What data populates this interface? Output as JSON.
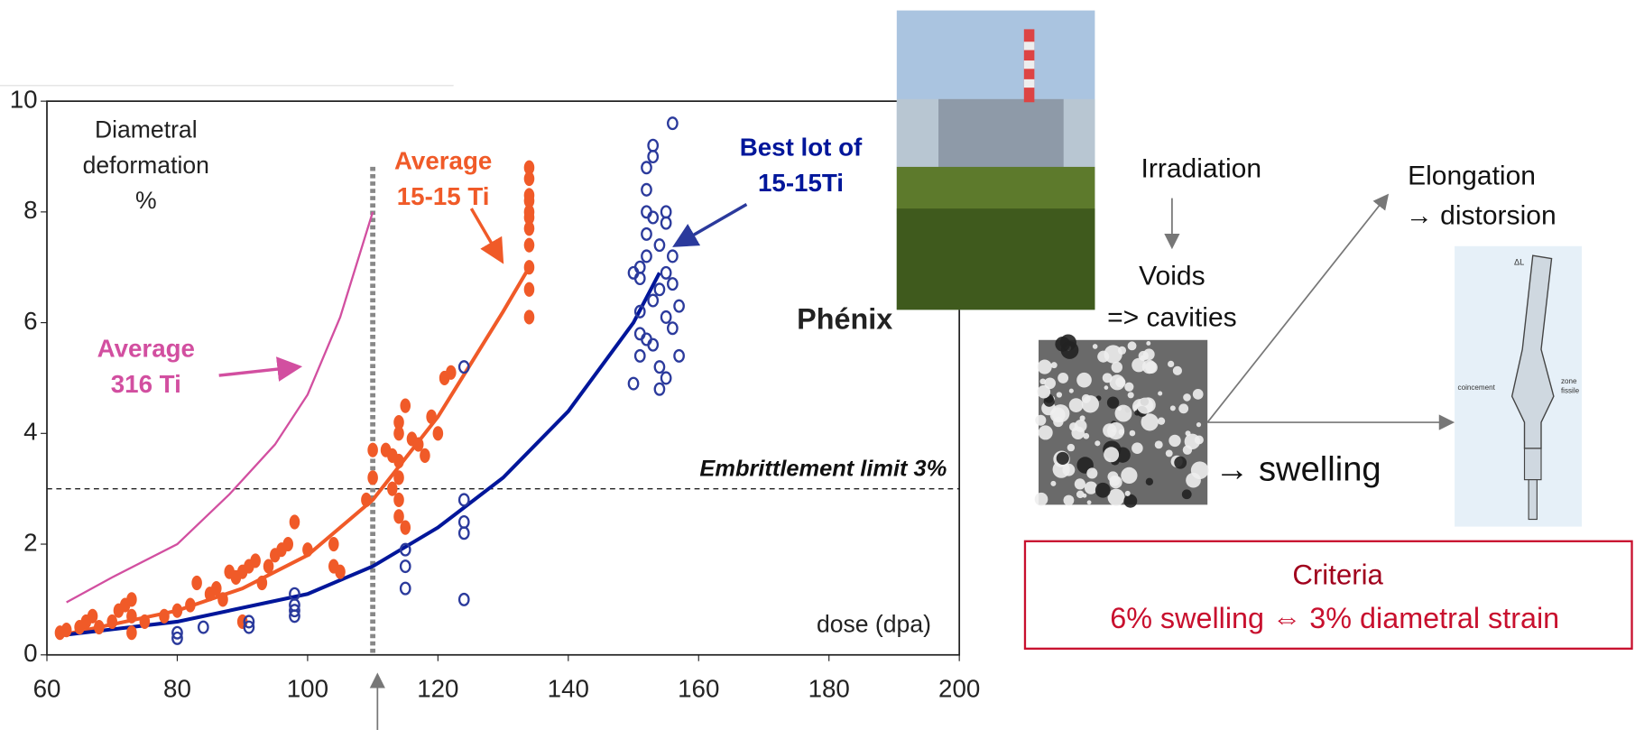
{
  "chart_data": {
    "type": "scatter",
    "ylabel_lines": [
      "Diametral",
      "deformation",
      "%"
    ],
    "xlabel": "dose (dpa)",
    "xlim": [
      60,
      200
    ],
    "xticks": [
      60,
      80,
      100,
      120,
      140,
      160,
      180,
      200
    ],
    "ylim": [
      0,
      10
    ],
    "yticks": [
      0,
      2,
      4,
      6,
      8,
      10
    ],
    "series": [
      {
        "label_lines": [
          "Average",
          "316 Ti"
        ],
        "style": "line",
        "color": "#d24fa0",
        "x": [
          63,
          70,
          80,
          88,
          95,
          100,
          105,
          110
        ],
        "values": [
          0.95,
          1.4,
          2.0,
          2.9,
          3.8,
          4.7,
          6.1,
          8.0
        ]
      },
      {
        "label_lines": [
          "Average",
          "15-15 Ti"
        ],
        "style": "line",
        "color": "#f05a28",
        "x": [
          62,
          70,
          80,
          90,
          100,
          110,
          120,
          130,
          134
        ],
        "values": [
          0.35,
          0.55,
          0.8,
          1.2,
          1.8,
          2.8,
          4.3,
          6.2,
          7.0
        ]
      },
      {
        "label_lines": [
          "Best lot of",
          "15-15Ti"
        ],
        "style": "line",
        "color": "#00169a",
        "x": [
          62,
          80,
          100,
          110,
          120,
          130,
          140,
          150,
          154
        ],
        "values": [
          0.35,
          0.6,
          1.1,
          1.6,
          2.3,
          3.2,
          4.4,
          6.0,
          6.9
        ]
      },
      {
        "style": "filled",
        "color": "#f05a28",
        "x": [
          62,
          63,
          65,
          66,
          67,
          68,
          70,
          71,
          72,
          73,
          73,
          73,
          75,
          78,
          80,
          82,
          83,
          85,
          86,
          87,
          88,
          89,
          90,
          90,
          91,
          92,
          93,
          94,
          95,
          96,
          97,
          98,
          100,
          104,
          104,
          105,
          109,
          110,
          110,
          112,
          113,
          113,
          114,
          114,
          114,
          114,
          114,
          114,
          115,
          115,
          116,
          117,
          118,
          119,
          120,
          121,
          122,
          134,
          134,
          134,
          134,
          134,
          134,
          134,
          134,
          134,
          134,
          134
        ],
        "values": [
          0.4,
          0.45,
          0.5,
          0.6,
          0.7,
          0.5,
          0.6,
          0.8,
          0.9,
          0.4,
          0.7,
          1.0,
          0.6,
          0.7,
          0.8,
          0.9,
          1.3,
          1.1,
          1.2,
          1.0,
          1.5,
          1.4,
          1.5,
          0.6,
          1.6,
          1.7,
          1.3,
          1.6,
          1.8,
          1.9,
          2.0,
          2.4,
          1.9,
          2.0,
          1.6,
          1.5,
          2.8,
          3.2,
          3.7,
          3.7,
          3.0,
          3.6,
          2.5,
          2.8,
          3.2,
          3.5,
          4.0,
          4.2,
          4.5,
          2.3,
          3.9,
          3.8,
          3.6,
          4.3,
          4.0,
          5.0,
          5.1,
          6.1,
          6.6,
          7.0,
          7.4,
          7.7,
          8.0,
          8.3,
          8.6,
          8.8,
          7.9,
          8.2
        ]
      },
      {
        "style": "open",
        "color": "#2b3a9c",
        "x": [
          80,
          80,
          84,
          91,
          91,
          98,
          98,
          98,
          98,
          115,
          115,
          115,
          124,
          124,
          124,
          124,
          124,
          150,
          151,
          151,
          151,
          151,
          152,
          152,
          152,
          152,
          153,
          153,
          151,
          152,
          153,
          153,
          154,
          154,
          154,
          155,
          155,
          155,
          156,
          156,
          156,
          157,
          157,
          154,
          155,
          156,
          155,
          153,
          152,
          150
        ],
        "values": [
          0.3,
          0.4,
          0.5,
          0.6,
          0.5,
          0.7,
          0.9,
          1.1,
          0.8,
          1.9,
          1.6,
          1.2,
          5.2,
          2.8,
          2.4,
          2.2,
          1.0,
          4.9,
          5.4,
          5.8,
          6.2,
          6.8,
          7.6,
          8.0,
          8.4,
          8.8,
          9.2,
          9.0,
          7.0,
          7.2,
          6.4,
          5.6,
          5.2,
          6.6,
          7.4,
          6.1,
          6.9,
          7.8,
          5.9,
          6.7,
          7.2,
          6.3,
          5.4,
          4.8,
          5.0,
          9.6,
          8.0,
          7.9,
          5.7,
          6.9
        ]
      }
    ],
    "hline": {
      "value": 3,
      "label": "Embrittlement limit 3%"
    },
    "vline": {
      "value": 110
    },
    "annotation": "Phénix"
  },
  "diagram": {
    "irradiation": "Irradiation",
    "voids": "Voids",
    "cavities": "=> cavities",
    "swelling": "→ swelling",
    "elongation": "Elongation",
    "distorsion": "→  distorsion",
    "pin_labels": [
      "ΔL",
      "coincement",
      "zone",
      "fissile"
    ],
    "criteria": {
      "title": "Criteria",
      "text": "6% swelling ⇔ 3%  diametral strain"
    }
  }
}
